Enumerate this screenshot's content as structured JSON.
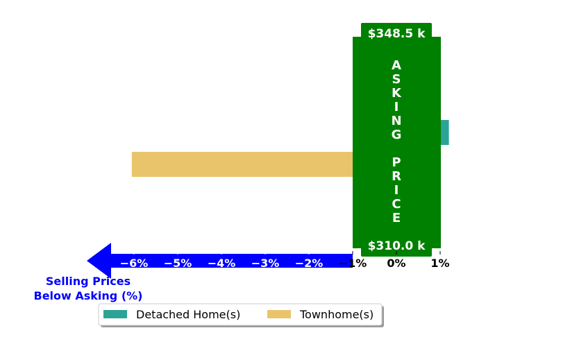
{
  "chart_data": {
    "type": "bar",
    "orientation": "horizontal",
    "x_ticks": [
      "−6%",
      "−5%",
      "−4%",
      "−3%",
      "−2%",
      "−1%",
      "0%",
      "1%"
    ],
    "xlim": [
      -7,
      1.2
    ],
    "series": [
      {
        "name": "Detached Home(s)",
        "values": [
          1.2
        ],
        "color": "#2ca397"
      },
      {
        "name": "Townhome(s)",
        "values": [
          -6.05
        ],
        "color": "#e9c46a"
      }
    ],
    "asking_band": {
      "top_label": "$348.5 k",
      "bottom_label": "$310.0 k",
      "letters": [
        "A",
        "S",
        "K",
        "I",
        "N",
        "G",
        "",
        "P",
        "R",
        "I",
        "C",
        "E"
      ],
      "color": "#008000"
    },
    "arrow": {
      "label_line1": "Selling Prices",
      "label_line2": "Below Asking (%)",
      "color": "#0000ff"
    },
    "legend": {
      "placement": "bottom",
      "items": [
        {
          "name": "Detached Home(s)",
          "color": "#2ca397"
        },
        {
          "name": "Townhome(s)",
          "color": "#e9c46a"
        }
      ]
    },
    "grid": false,
    "title": "",
    "xlabel": "",
    "ylabel": ""
  }
}
